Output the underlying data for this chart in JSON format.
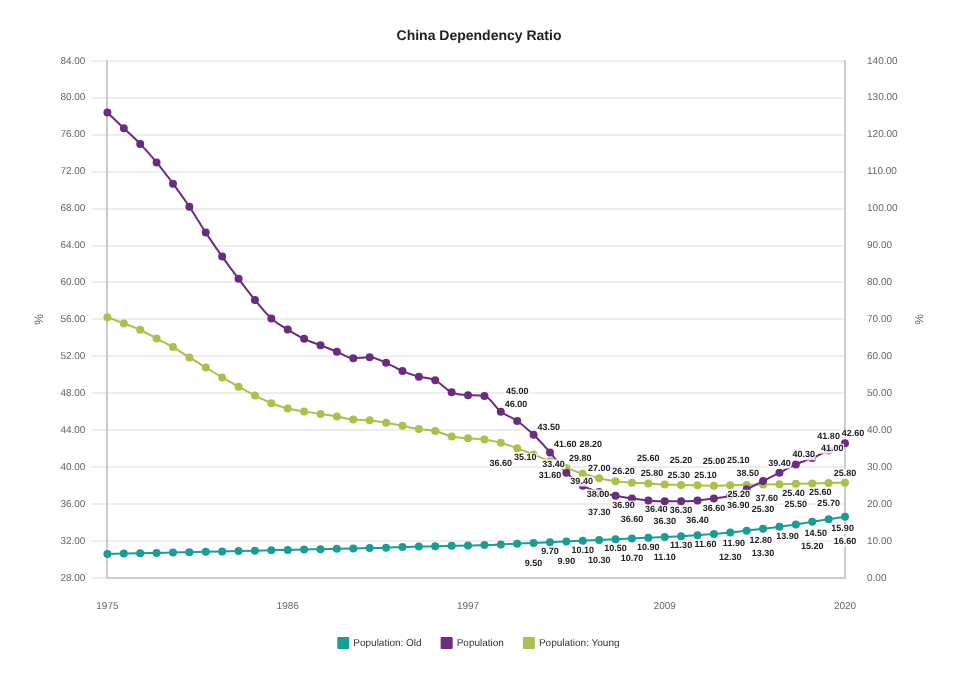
{
  "chart_data": {
    "type": "line",
    "title": "China Dependency Ratio",
    "ylabel": "%",
    "y2label": "%",
    "categories": [
      "1975",
      null,
      null,
      null,
      null,
      null,
      null,
      null,
      null,
      null,
      null,
      "1986",
      null,
      null,
      null,
      null,
      null,
      null,
      null,
      null,
      null,
      null,
      "1997",
      null,
      null,
      null,
      null,
      null,
      null,
      null,
      null,
      null,
      null,
      null,
      "2009",
      null,
      null,
      null,
      null,
      null,
      null,
      null,
      null,
      null,
      null,
      "2020"
    ],
    "series": [
      {
        "name": "Population: Old",
        "color": "#1a9e94",
        "axis": "y2",
        "values": [
          6.5,
          6.6,
          6.7,
          6.8,
          6.9,
          7.0,
          7.1,
          7.2,
          7.3,
          7.4,
          7.5,
          7.6,
          7.7,
          7.8,
          7.9,
          8.0,
          8.1,
          8.2,
          8.4,
          8.5,
          8.6,
          8.7,
          8.8,
          8.9,
          9.1,
          9.3,
          9.5,
          9.7,
          9.9,
          10.1,
          10.3,
          10.5,
          10.7,
          10.9,
          11.1,
          11.3,
          11.6,
          11.9,
          12.3,
          12.8,
          13.3,
          13.9,
          14.5,
          15.2,
          15.9,
          16.6
        ],
        "value_labels": [
          null,
          null,
          null,
          null,
          null,
          null,
          null,
          null,
          null,
          null,
          null,
          null,
          null,
          null,
          null,
          null,
          null,
          null,
          null,
          null,
          null,
          null,
          null,
          null,
          null,
          null,
          "9.50",
          "9.70",
          "9.90",
          "10.10",
          "10.30",
          "10.50",
          "10.70",
          "10.90",
          "11.10",
          "11.30",
          "11.60",
          "11.90",
          "12.30",
          "12.80",
          "13.30",
          "13.90",
          "14.50",
          "15.20",
          "15.90",
          "16.60"
        ]
      },
      {
        "name": "Population",
        "color": "#6b2d7f",
        "values": [
          78.4,
          76.7,
          75.0,
          73.0,
          70.7,
          68.2,
          65.4,
          62.8,
          60.4,
          58.1,
          56.1,
          54.9,
          53.9,
          53.2,
          52.5,
          51.8,
          51.9,
          51.3,
          50.4,
          49.8,
          49.4,
          48.1,
          47.8,
          47.7,
          46.0,
          45.0,
          43.5,
          41.6,
          39.4,
          38.0,
          37.3,
          36.9,
          36.6,
          36.4,
          36.3,
          36.3,
          36.4,
          36.6,
          36.9,
          37.6,
          38.5,
          39.4,
          40.3,
          41.0,
          41.8,
          42.6
        ],
        "value_labels": [
          null,
          null,
          null,
          null,
          null,
          null,
          null,
          null,
          null,
          null,
          null,
          null,
          null,
          null,
          null,
          null,
          null,
          null,
          null,
          null,
          null,
          null,
          null,
          null,
          "46.00",
          "45.00",
          "43.50",
          "41.60",
          "39.40",
          "38.00",
          "37.30",
          "36.90",
          "36.60",
          "36.40",
          "36.30",
          "36.30",
          "36.40",
          "36.60",
          "36.90",
          "37.60",
          "38.50",
          "39.40",
          "40.30",
          "41.00",
          "41.80",
          "42.60"
        ]
      },
      {
        "name": "Population: Young",
        "color": "#a8c34a",
        "axis": "y2",
        "values": [
          70.6,
          68.9,
          67.2,
          64.8,
          62.5,
          59.7,
          57.0,
          54.3,
          51.8,
          49.4,
          47.3,
          45.9,
          45.1,
          44.4,
          43.7,
          42.9,
          42.7,
          42.0,
          41.2,
          40.3,
          39.8,
          38.3,
          37.8,
          37.5,
          36.6,
          35.1,
          33.4,
          31.6,
          29.8,
          28.2,
          27.0,
          26.2,
          25.8,
          25.6,
          25.3,
          25.2,
          25.1,
          25.0,
          25.1,
          25.2,
          25.3,
          25.4,
          25.5,
          25.6,
          25.7,
          25.8
        ],
        "value_labels": [
          null,
          null,
          null,
          null,
          null,
          null,
          null,
          null,
          null,
          null,
          null,
          null,
          null,
          null,
          null,
          null,
          null,
          null,
          null,
          null,
          null,
          null,
          null,
          null,
          "36.60",
          "35.10",
          "33.40",
          "31.60",
          "29.80",
          "28.20",
          "27.00",
          "26.20",
          "25.80",
          "25.60",
          "25.30",
          "25.20",
          "25.10",
          "25.00",
          "25.10",
          "25.20",
          "25.30",
          "25.40",
          "25.50",
          "25.60",
          "25.70",
          "25.80"
        ]
      }
    ],
    "ylim": [
      28,
      84
    ],
    "yticks": [
      {
        "value": 28,
        "label": "28.00"
      },
      {
        "value": 32,
        "label": "32.00"
      },
      {
        "value": 36,
        "label": "36.00"
      },
      {
        "value": 40,
        "label": "40.00"
      },
      {
        "value": 44,
        "label": "44.00"
      },
      {
        "value": 48,
        "label": "48.00"
      },
      {
        "value": 52,
        "label": "52.00"
      },
      {
        "value": 56,
        "label": "56.00"
      },
      {
        "value": 60,
        "label": "60.00"
      },
      {
        "value": 64,
        "label": "64.00"
      },
      {
        "value": 68,
        "label": "68.00"
      },
      {
        "value": 72,
        "label": "72.00"
      },
      {
        "value": 76,
        "label": "76.00"
      },
      {
        "value": 80,
        "label": "80.00"
      },
      {
        "value": 84,
        "label": "84.00"
      }
    ],
    "y2lim": [
      0,
      140
    ],
    "y2ticks": [
      {
        "value": 0,
        "label": "0.00"
      },
      {
        "value": 10,
        "label": "10.00"
      },
      {
        "value": 20,
        "label": "20.00"
      },
      {
        "value": 30,
        "label": "30.00"
      },
      {
        "value": 40,
        "label": "40.00"
      },
      {
        "value": 50,
        "label": "50.00"
      },
      {
        "value": 60,
        "label": "60.00"
      },
      {
        "value": 70,
        "label": "70.00"
      },
      {
        "value": 80,
        "label": "80.00"
      },
      {
        "value": 90,
        "label": "90.00"
      },
      {
        "value": 100,
        "label": "100.00"
      },
      {
        "value": 110,
        "label": "110.00"
      },
      {
        "value": 120,
        "label": "120.00"
      },
      {
        "value": 130,
        "label": "130.00"
      },
      {
        "value": 140,
        "label": "140.00"
      }
    ],
    "grid": "y",
    "legend": "bottom",
    "marker": "circle",
    "line_style": "solid"
  }
}
